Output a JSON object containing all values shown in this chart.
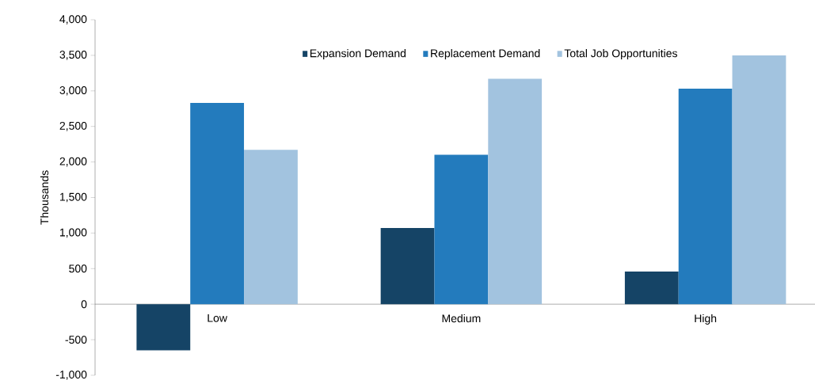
{
  "chart_data": {
    "type": "bar",
    "ylabel": "Thousands",
    "categories": [
      "Low",
      "Medium",
      "High"
    ],
    "series": [
      {
        "name": "Expansion Demand",
        "color": "#154466",
        "values": [
          -650,
          1070,
          460
        ]
      },
      {
        "name": "Replacement Demand",
        "color": "#237bbd",
        "values": [
          2830,
          2100,
          3030
        ]
      },
      {
        "name": "Total Job Opportunities",
        "color": "#a2c3df",
        "values": [
          2170,
          3170,
          3500
        ]
      }
    ],
    "ylim": [
      -1000,
      4000
    ],
    "yticks": [
      {
        "value": -1000,
        "label": "-1,000"
      },
      {
        "value": -500,
        "label": "-500"
      },
      {
        "value": 0,
        "label": "0"
      },
      {
        "value": 500,
        "label": "500"
      },
      {
        "value": 1000,
        "label": "1,000"
      },
      {
        "value": 1500,
        "label": "1,500"
      },
      {
        "value": 2000,
        "label": "2,000"
      },
      {
        "value": 2500,
        "label": "2,500"
      },
      {
        "value": 3000,
        "label": "3,000"
      },
      {
        "value": 3500,
        "label": "3,500"
      },
      {
        "value": 4000,
        "label": "4,000"
      }
    ],
    "grid": false,
    "legend": "top"
  }
}
